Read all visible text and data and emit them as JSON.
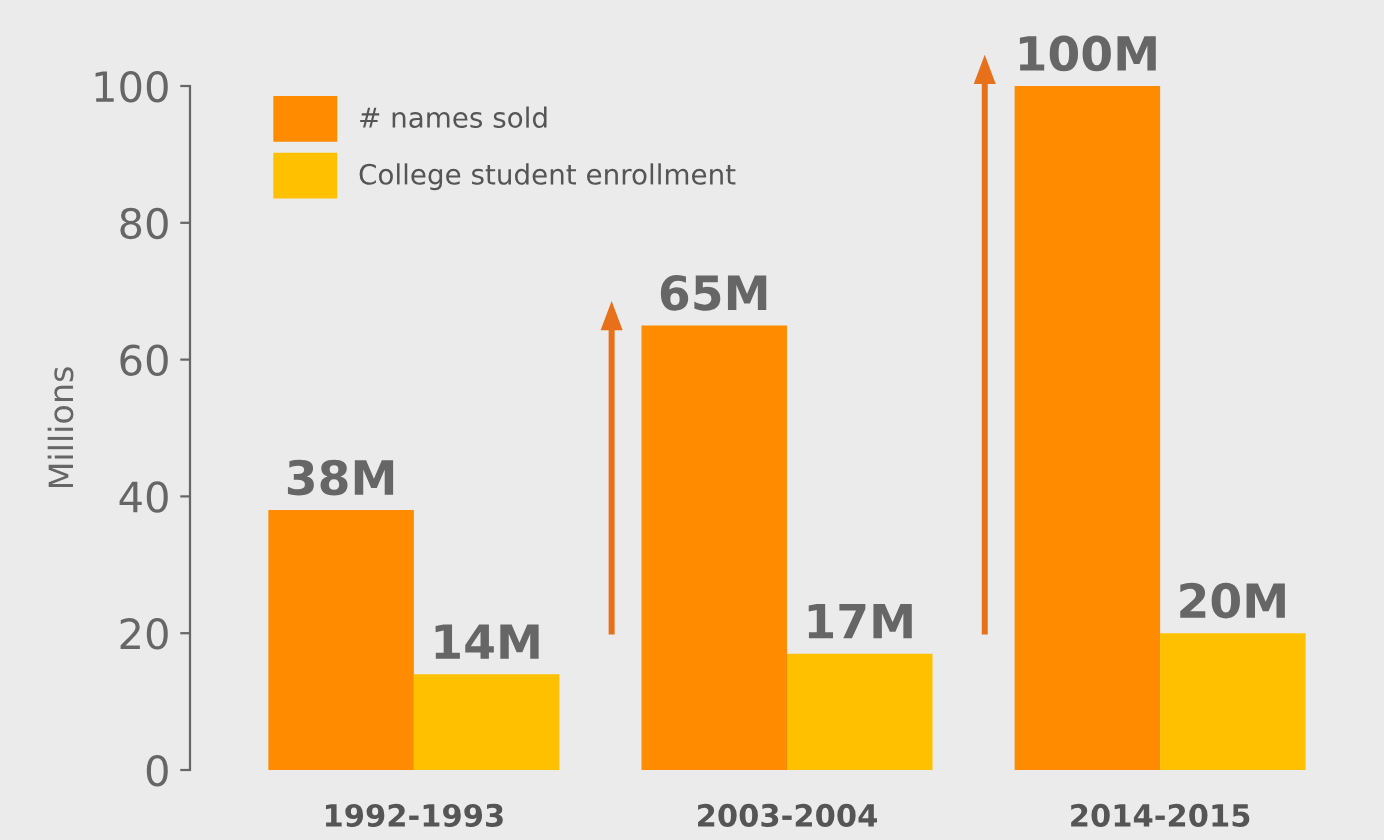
{
  "chart_data": {
    "type": "bar",
    "ylabel": "Millions",
    "categories": [
      "1992-1993",
      "2003-2004",
      "2014-2015"
    ],
    "series": [
      {
        "name": "# names sold",
        "color": "#ff8c00",
        "values": [
          38,
          65,
          100
        ],
        "value_labels": [
          "38M",
          "65M",
          "100M"
        ]
      },
      {
        "name": "College student enrollment",
        "color": "#ffc000",
        "values": [
          14,
          17,
          20
        ],
        "value_labels": [
          "14M",
          "17M",
          "20M"
        ]
      }
    ],
    "ylim": [
      0,
      100
    ],
    "yticks": [
      0,
      20,
      40,
      60,
      80,
      100
    ],
    "grid": false,
    "legend": "top left"
  }
}
